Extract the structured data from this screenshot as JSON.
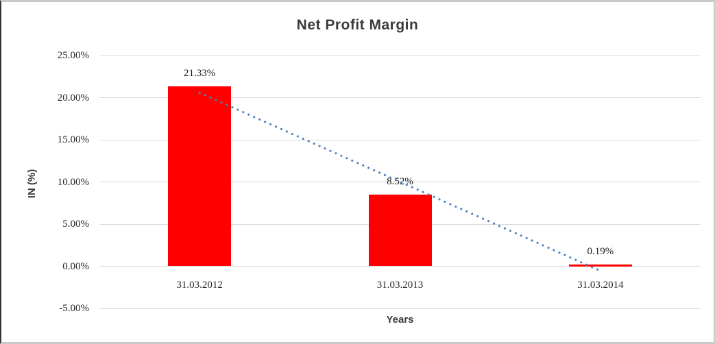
{
  "chart_data": {
    "type": "bar",
    "title": "Net Profit Margin",
    "xlabel": "Years",
    "ylabel": "IN (%)",
    "categories": [
      "31.03.2012",
      "31.03.2013",
      "31.03.2014"
    ],
    "values": [
      21.33,
      8.52,
      0.19
    ],
    "data_labels": [
      "21.33%",
      "8.52%",
      "0.19%"
    ],
    "ytick_values": [
      25,
      20,
      15,
      10,
      5,
      0,
      -5
    ],
    "ytick_labels": [
      "25.00%",
      "20.00%",
      "15.00%",
      "10.00%",
      "5.00%",
      "0.00%",
      "-5.00%"
    ],
    "ylim": [
      -5,
      25
    ],
    "grid": true,
    "legend": false,
    "bar_color": "#ff0000",
    "gridline_color": "#d9d9d9",
    "trendline": {
      "type": "linear",
      "style": "dotted",
      "color": "#4f81bd",
      "start_value": 20.58,
      "end_value": -0.55
    }
  }
}
